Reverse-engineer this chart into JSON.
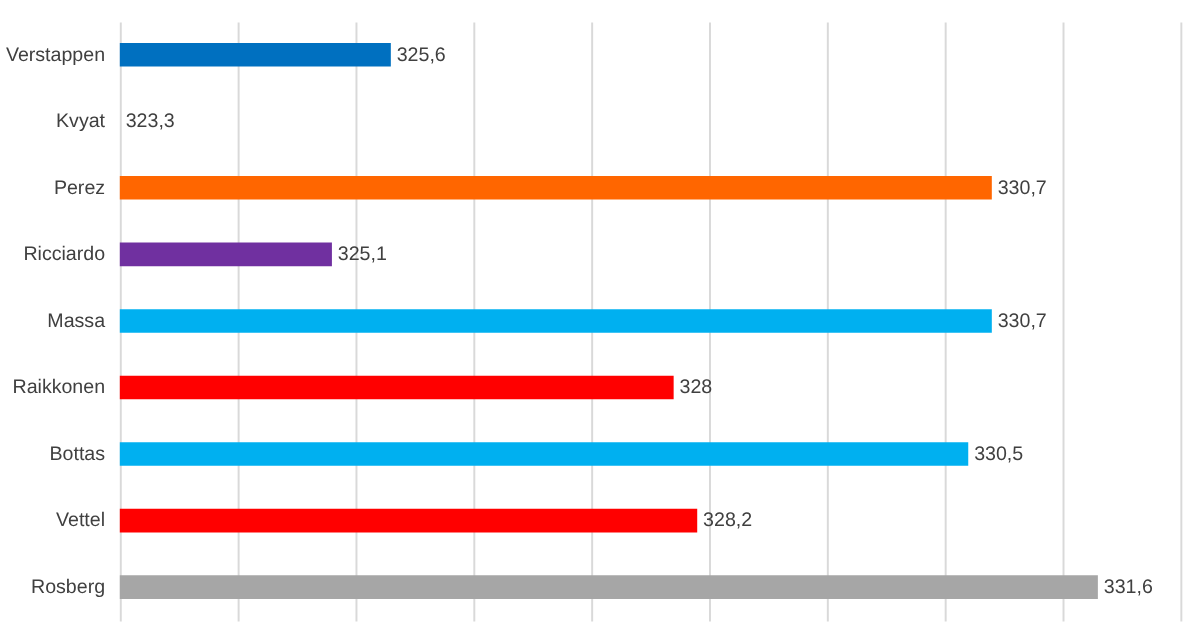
{
  "chart_data": {
    "type": "bar",
    "orientation": "horizontal",
    "categories": [
      "Verstappen",
      "Kvyat",
      "Perez",
      "Ricciardo",
      "Massa",
      "Raikkonen",
      "Bottas",
      "Vettel",
      "Rosberg"
    ],
    "values": [
      325.6,
      323.3,
      330.7,
      325.1,
      330.7,
      328,
      330.5,
      328.2,
      331.6
    ],
    "value_labels": [
      "325,6",
      "323,3",
      "330,7",
      "325,1",
      "330,7",
      "328",
      "330,5",
      "328,2",
      "331,6"
    ],
    "colors": [
      "#0070c0",
      "#1f3864",
      "#ff6600",
      "#7030a0",
      "#00b0f0",
      "#ff0000",
      "#00b0f0",
      "#ff0000",
      "#a6a6a6"
    ],
    "xlim": [
      323.3,
      332.3
    ],
    "xticks": [
      {
        "value": 323.3,
        "label": null
      },
      {
        "value": 324.3,
        "label": null
      },
      {
        "value": 325.3,
        "label": null
      },
      {
        "value": 326.3,
        "label": null
      },
      {
        "value": 327.3,
        "label": null
      },
      {
        "value": 328.3,
        "label": null
      },
      {
        "value": 329.3,
        "label": null
      },
      {
        "value": 330.3,
        "label": null
      },
      {
        "value": 331.3,
        "label": null
      },
      {
        "value": 332.3,
        "label": null
      }
    ],
    "grid": "x",
    "tick_labels": "y",
    "legend": false
  }
}
